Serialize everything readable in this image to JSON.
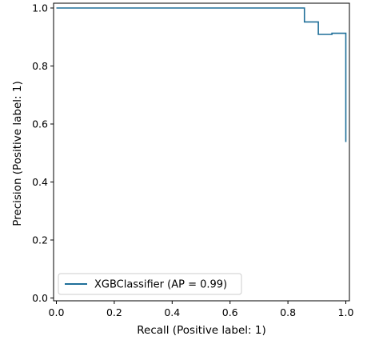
{
  "chart_data": {
    "type": "line",
    "xlabel": "Recall (Positive label: 1)",
    "ylabel": "Precision (Positive label: 1)",
    "xlim": [
      0.0,
      1.0
    ],
    "ylim": [
      0.0,
      1.0
    ],
    "xticks": [
      "0.0",
      "0.2",
      "0.4",
      "0.6",
      "0.8",
      "1.0"
    ],
    "yticks": [
      "0.0",
      "0.2",
      "0.4",
      "0.6",
      "0.8",
      "1.0"
    ],
    "grid": false,
    "legend_position": "lower-left",
    "series": [
      {
        "name": "XGBClassifier (AP = 0.99)",
        "color": "#1f6f99",
        "step": "post",
        "points": [
          {
            "x": 0.0,
            "y": 1.0
          },
          {
            "x": 0.857,
            "y": 1.0
          },
          {
            "x": 0.857,
            "y": 0.952
          },
          {
            "x": 0.905,
            "y": 0.952
          },
          {
            "x": 0.905,
            "y": 0.909
          },
          {
            "x": 0.952,
            "y": 0.909
          },
          {
            "x": 0.952,
            "y": 0.913
          },
          {
            "x": 1.0,
            "y": 0.913
          },
          {
            "x": 1.0,
            "y": 0.538
          }
        ]
      }
    ]
  }
}
